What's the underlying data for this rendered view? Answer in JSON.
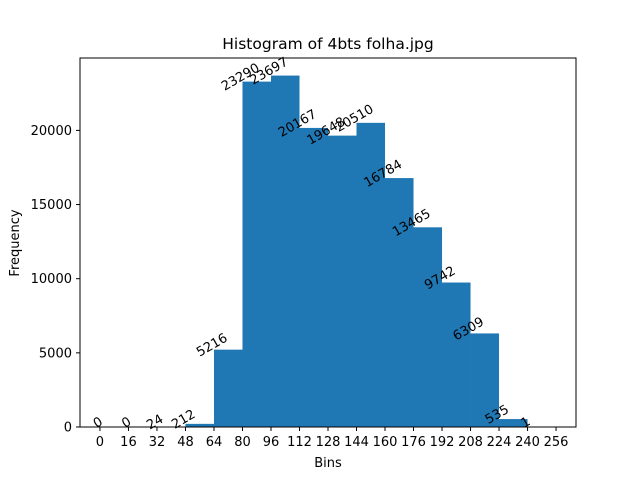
{
  "chart_data": {
    "type": "bar",
    "title": "Histogram of 4bts folha.jpg",
    "xlabel": "Bins",
    "ylabel": "Frequency",
    "bin_edges": [
      0,
      16,
      32,
      48,
      64,
      80,
      96,
      112,
      128,
      144,
      160,
      176,
      192,
      208,
      224,
      240,
      256
    ],
    "bar_width": 16,
    "bars": [
      {
        "x": 0,
        "value": 0,
        "label": "0"
      },
      {
        "x": 16,
        "value": 0,
        "label": "0"
      },
      {
        "x": 32,
        "value": 24,
        "label": "24"
      },
      {
        "x": 48,
        "value": 212,
        "label": "212"
      },
      {
        "x": 64,
        "value": 5216,
        "label": "5216"
      },
      {
        "x": 80,
        "value": 23290,
        "label": "23290"
      },
      {
        "x": 96,
        "value": 23697,
        "label": "23697"
      },
      {
        "x": 112,
        "value": 20167,
        "label": "20167"
      },
      {
        "x": 128,
        "value": 19648,
        "label": "19648"
      },
      {
        "x": 144,
        "value": 20510,
        "label": "20510"
      },
      {
        "x": 160,
        "value": 16784,
        "label": "16784"
      },
      {
        "x": 176,
        "value": 13465,
        "label": "13465"
      },
      {
        "x": 192,
        "value": 9742,
        "label": "9742"
      },
      {
        "x": 208,
        "value": 6309,
        "label": "6309"
      },
      {
        "x": 224,
        "value": 535,
        "label": "535"
      },
      {
        "x": 240,
        "value": 1,
        "label": "1"
      }
    ],
    "xticks": [
      "0",
      "16",
      "32",
      "48",
      "64",
      "80",
      "96",
      "112",
      "128",
      "144",
      "160",
      "176",
      "192",
      "208",
      "224",
      "240",
      "256"
    ],
    "yticks": [
      {
        "value": 0,
        "label": "0"
      },
      {
        "value": 5000,
        "label": "5000"
      },
      {
        "value": 10000,
        "label": "10000"
      },
      {
        "value": 15000,
        "label": "15000"
      },
      {
        "value": 20000,
        "label": "20000"
      }
    ],
    "xlim": [
      -11.2,
      267.2
    ],
    "ylim": [
      0,
      24882
    ],
    "bar_color": "#1f77b4",
    "grid": false,
    "legend": "none"
  }
}
